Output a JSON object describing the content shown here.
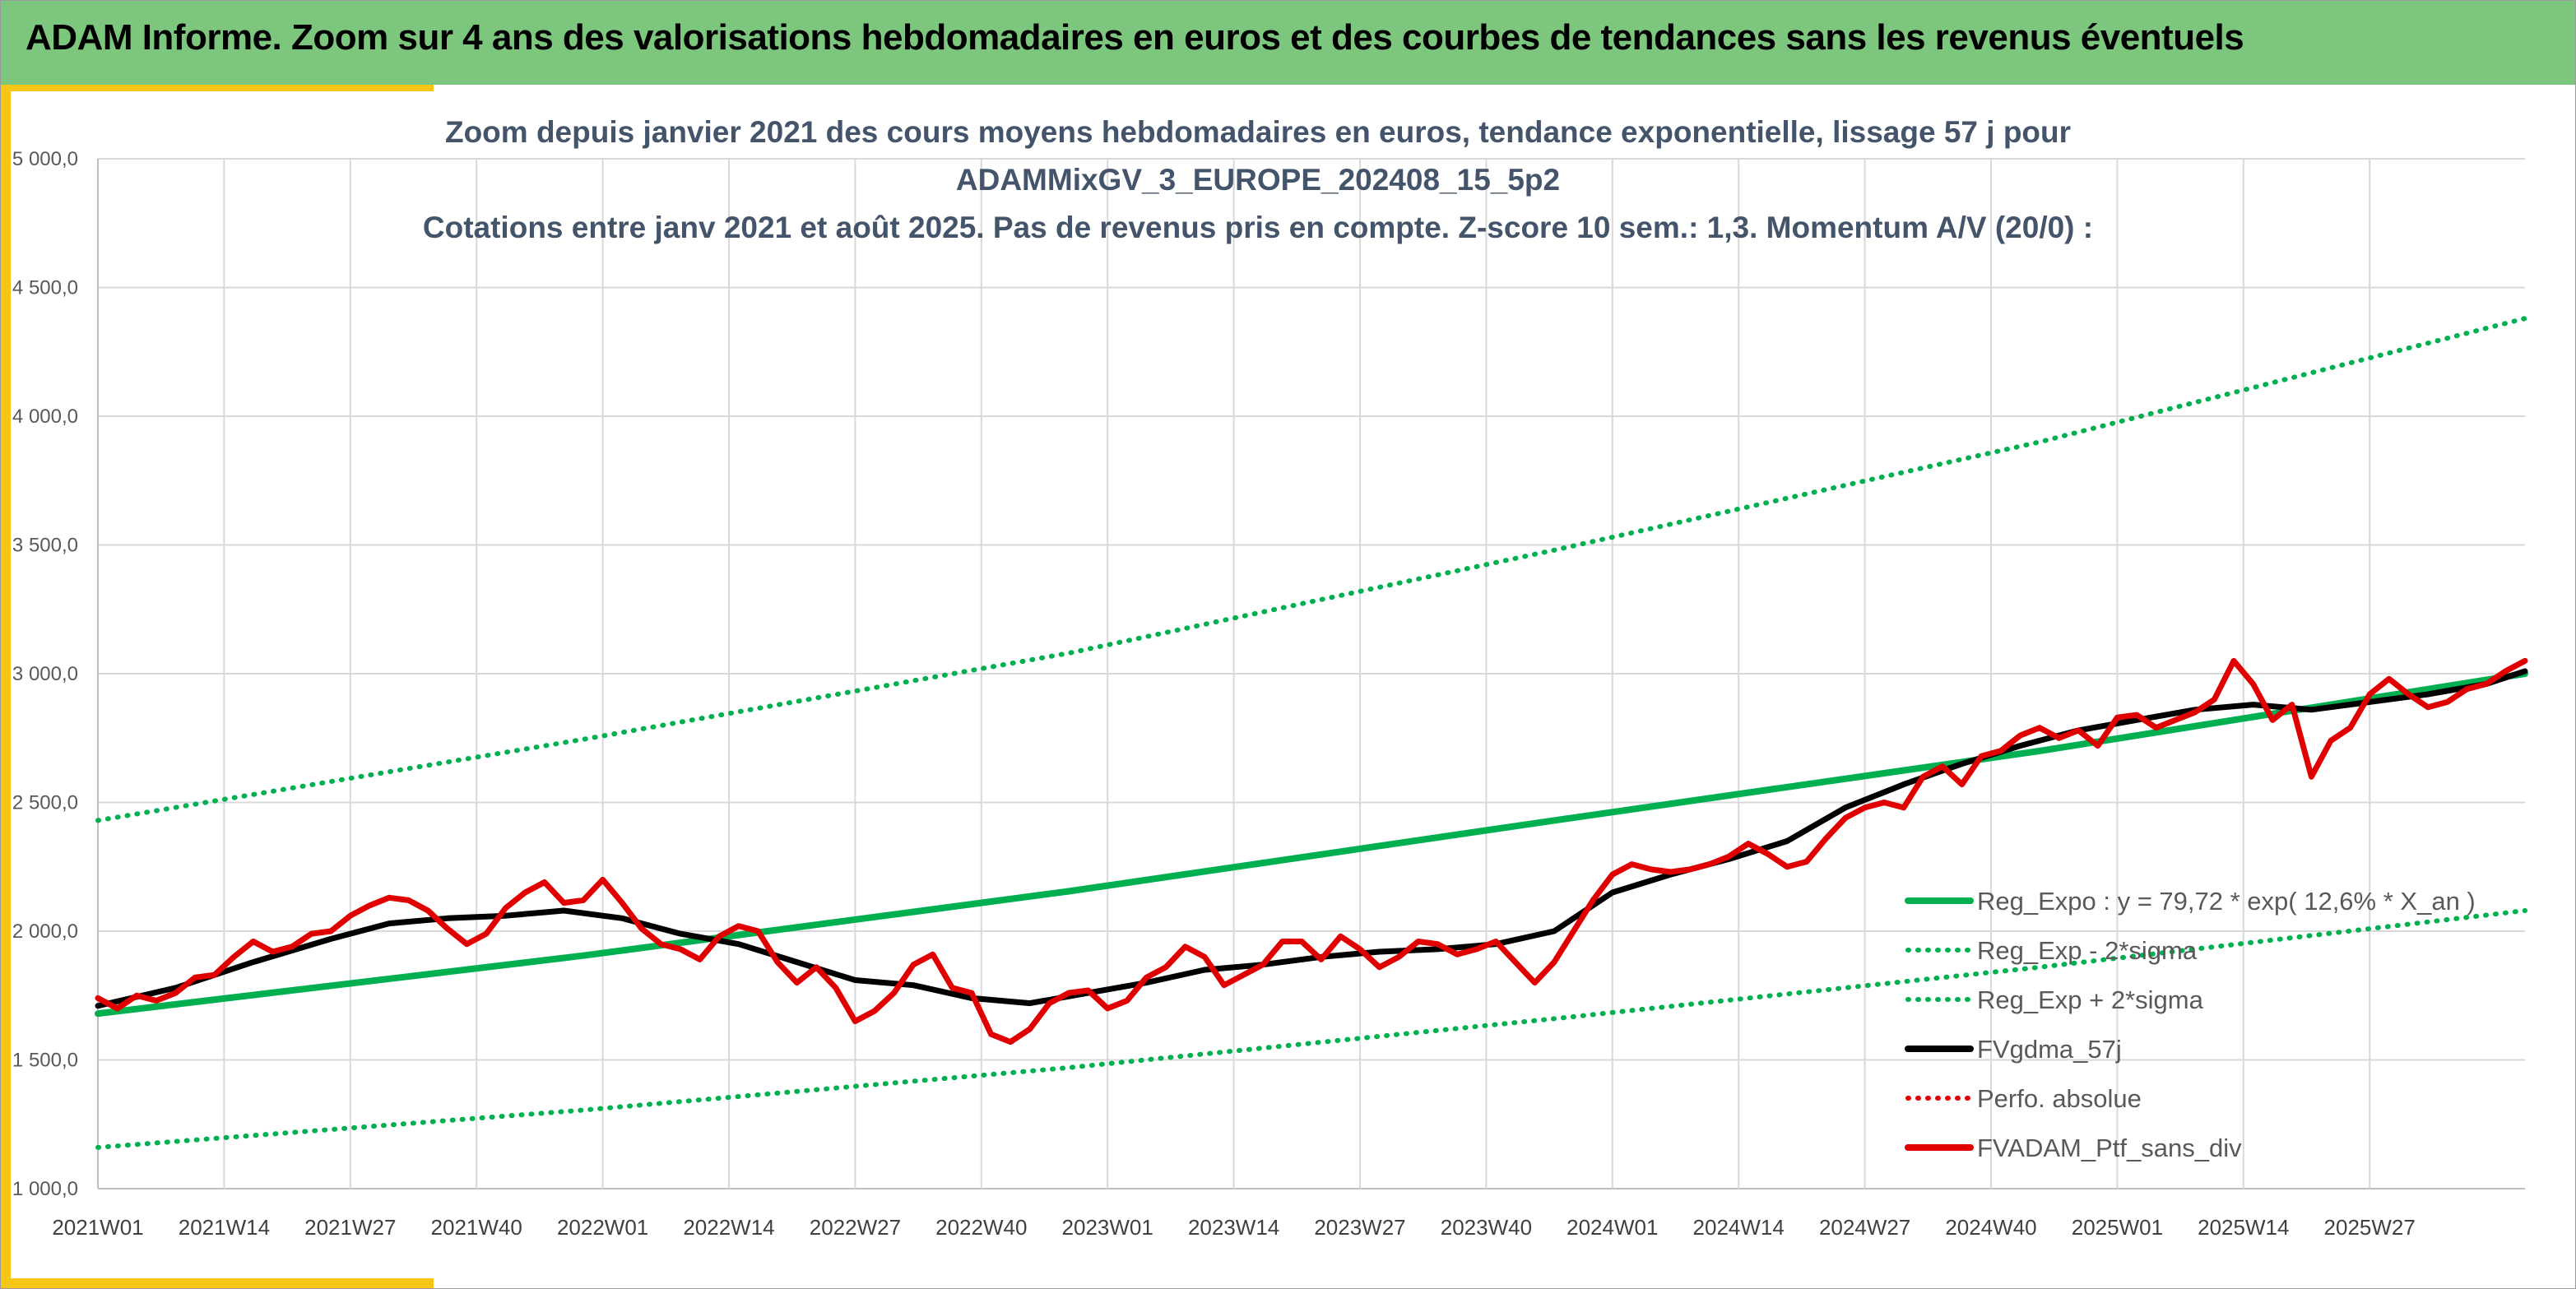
{
  "banner": {
    "title": "ADAM Informe. Zoom sur 4 ans des valorisations hebdomadaires en euros et des courbes de tendances sans les revenus éventuels"
  },
  "colors": {
    "banner_green": "#7dc67d",
    "accent_yellow": "#f5c518",
    "trend_green": "#00b050",
    "dma_black": "#000000",
    "price_red": "#e00000",
    "title_blue_grey": "#44546a"
  },
  "chart_data": {
    "type": "line",
    "title": [
      "Zoom depuis janvier 2021 des cours moyens hebdomadaires en euros, tendance exponentielle, lissage 57 j pour",
      "ADAMMixGV_3_EUROPE_202408_15_5p2",
      "Cotations entre janv 2021 et août 2025. Pas de revenus pris en compte. Z-score 10 sem.: 1,3. Momentum A/V (20/0) :"
    ],
    "xlabel": "",
    "ylabel": "",
    "ylim": [
      1000,
      5000
    ],
    "y_ticks": [
      "1 000,0",
      "1 500,0",
      "2 000,0",
      "2 500,0",
      "3 000,0",
      "3 500,0",
      "4 000,0",
      "4 500,0",
      "5 000,0"
    ],
    "y_tick_values": [
      1000,
      1500,
      2000,
      2500,
      3000,
      3500,
      4000,
      4500,
      5000
    ],
    "x_ticks": [
      "2021W01",
      "2021W14",
      "2021W27",
      "2021W40",
      "2022W01",
      "2022W14",
      "2022W27",
      "2022W40",
      "2023W01",
      "2023W14",
      "2023W27",
      "2023W40",
      "2024W01",
      "2024W14",
      "2024W27",
      "2024W40",
      "2025W01",
      "2025W14",
      "2025W27"
    ],
    "x_tick_index": [
      0,
      13,
      26,
      39,
      52,
      65,
      78,
      91,
      104,
      117,
      130,
      143,
      156,
      169,
      182,
      195,
      208,
      221,
      234
    ],
    "x_range_weeks": [
      0,
      250
    ],
    "grid": true,
    "legend_position": "bottom-right",
    "series": [
      {
        "name": "Reg_Expo : y = 79,72 * exp( 12,6% *  X_an )",
        "style": "solid",
        "color": "#00b050",
        "x": [
          0,
          50,
          100,
          150,
          200,
          250
        ],
        "y": [
          1680,
          1905,
          2155,
          2430,
          2700,
          3000
        ]
      },
      {
        "name": "Reg_Exp - 2*sigma",
        "style": "dotted",
        "color": "#00b050",
        "x": [
          0,
          50,
          100,
          150,
          200,
          250
        ],
        "y": [
          1160,
          1305,
          1470,
          1660,
          1860,
          2080
        ]
      },
      {
        "name": "Reg_Exp + 2*sigma",
        "style": "dotted",
        "color": "#00b050",
        "x": [
          0,
          50,
          100,
          150,
          200,
          250
        ],
        "y": [
          2430,
          2745,
          3080,
          3480,
          3900,
          4380
        ]
      },
      {
        "name": "FVgdma_57j",
        "style": "solid",
        "color": "#000000",
        "x": [
          0,
          8,
          16,
          24,
          30,
          36,
          42,
          48,
          54,
          60,
          66,
          72,
          78,
          84,
          90,
          96,
          102,
          108,
          114,
          120,
          126,
          132,
          138,
          144,
          150,
          156,
          162,
          168,
          174,
          180,
          186,
          192,
          198,
          204,
          210,
          216,
          222,
          228,
          234,
          240,
          246,
          250
        ],
        "y": [
          1710,
          1780,
          1880,
          1970,
          2030,
          2050,
          2060,
          2080,
          2050,
          1990,
          1950,
          1880,
          1810,
          1790,
          1740,
          1720,
          1760,
          1800,
          1850,
          1870,
          1900,
          1920,
          1930,
          1950,
          2000,
          2150,
          2220,
          2280,
          2350,
          2480,
          2570,
          2650,
          2720,
          2780,
          2820,
          2860,
          2880,
          2860,
          2890,
          2920,
          2960,
          3010
        ]
      },
      {
        "name": "Perfo. absolue",
        "style": "dotted",
        "color": "#e00000",
        "x": [],
        "y": []
      },
      {
        "name": "FVADAM_Ptf_sans_div",
        "style": "solid",
        "color": "#e00000",
        "x": [
          0,
          2,
          4,
          6,
          8,
          10,
          12,
          14,
          16,
          18,
          20,
          22,
          24,
          26,
          28,
          30,
          32,
          34,
          36,
          38,
          40,
          42,
          44,
          46,
          48,
          50,
          52,
          54,
          56,
          58,
          60,
          62,
          64,
          66,
          68,
          70,
          72,
          74,
          76,
          78,
          80,
          82,
          84,
          86,
          88,
          90,
          92,
          94,
          96,
          98,
          100,
          102,
          104,
          106,
          108,
          110,
          112,
          114,
          116,
          118,
          120,
          122,
          124,
          126,
          128,
          130,
          132,
          134,
          136,
          138,
          140,
          142,
          144,
          146,
          148,
          150,
          152,
          154,
          156,
          158,
          160,
          162,
          164,
          166,
          168,
          170,
          172,
          174,
          176,
          178,
          180,
          182,
          184,
          186,
          188,
          190,
          192,
          194,
          196,
          198,
          200,
          202,
          204,
          206,
          208,
          210,
          212,
          214,
          216,
          218,
          220,
          222,
          224,
          226,
          228,
          230,
          232,
          234,
          236,
          238,
          240,
          242,
          244,
          246,
          248,
          250
        ],
        "y": [
          1740,
          1700,
          1750,
          1730,
          1760,
          1820,
          1830,
          1900,
          1960,
          1920,
          1940,
          1990,
          2000,
          2060,
          2100,
          2130,
          2120,
          2080,
          2010,
          1950,
          1990,
          2090,
          2150,
          2190,
          2110,
          2120,
          2200,
          2110,
          2010,
          1950,
          1930,
          1890,
          1980,
          2020,
          2000,
          1880,
          1800,
          1860,
          1780,
          1650,
          1690,
          1760,
          1870,
          1910,
          1780,
          1760,
          1600,
          1570,
          1620,
          1720,
          1760,
          1770,
          1700,
          1730,
          1820,
          1860,
          1940,
          1900,
          1790,
          1830,
          1870,
          1960,
          1960,
          1890,
          1980,
          1930,
          1860,
          1900,
          1960,
          1950,
          1910,
          1930,
          1960,
          1880,
          1800,
          1880,
          2000,
          2120,
          2220,
          2260,
          2240,
          2230,
          2240,
          2260,
          2290,
          2340,
          2300,
          2250,
          2270,
          2360,
          2440,
          2480,
          2500,
          2480,
          2600,
          2640,
          2570,
          2680,
          2700,
          2760,
          2790,
          2750,
          2780,
          2720,
          2830,
          2840,
          2790,
          2820,
          2850,
          2900,
          3050,
          2960,
          2820,
          2880,
          2600,
          2740,
          2790,
          2920,
          2980,
          2920,
          2870,
          2890,
          2940,
          2960,
          3010,
          3050
        ]
      }
    ]
  }
}
